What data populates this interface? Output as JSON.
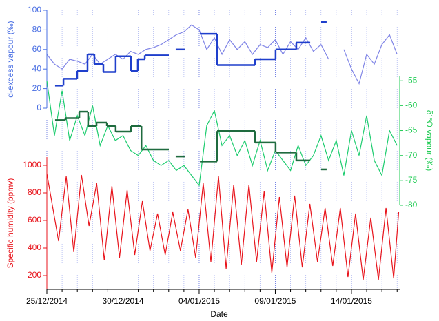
{
  "chart_data": [
    {
      "type": "line",
      "ylabel": "d-excess vapour (‰)",
      "axis_color": "#4a6fe3",
      "axis_side": "left",
      "ylim": [
        0,
        100
      ],
      "yticks": [
        0,
        20,
        40,
        60,
        80,
        100
      ],
      "series": [
        {
          "color": "#7f84e6",
          "x": [
            0,
            0.5,
            1,
            1.5,
            2,
            2.5,
            3,
            3.5,
            4,
            4.5,
            5,
            5.5,
            6,
            6.5,
            7,
            7.5,
            8,
            8.5,
            9,
            9.5,
            10,
            10.5,
            11,
            11.5,
            12,
            12.5,
            13,
            13.5,
            14,
            14.5,
            15,
            15.5,
            16,
            16.5,
            17,
            17.5,
            18,
            18.5,
            19,
            19.5,
            20,
            20.5,
            21,
            21.5,
            22,
            22.5,
            23
          ],
          "values": [
            55,
            45,
            40,
            50,
            48,
            45,
            55,
            45,
            50,
            55,
            50,
            58,
            55,
            60,
            62,
            65,
            70,
            75,
            78,
            85,
            80,
            60,
            72,
            55,
            70,
            60,
            68,
            55,
            65,
            62,
            70,
            55,
            68,
            60,
            72,
            58,
            65,
            50,
            null,
            60,
            40,
            25,
            55,
            45,
            65,
            75,
            55
          ]
        },
        {
          "color": "#1f3fcc",
          "drawstyle": "steps-post",
          "x": [
            0.54,
            1.09,
            1.99,
            2.67,
            3.12,
            3.71,
            4.52,
            5.52,
            5.97,
            6.43,
            8.01,
            8.46,
            9.05,
            10.05,
            11.18,
            13.67,
            15.02,
            16.38,
            17.29,
            18.01,
            18.37
          ],
          "values": [
            23,
            30,
            38,
            55,
            45,
            37,
            53,
            38,
            50,
            54,
            null,
            60,
            null,
            76,
            44,
            50,
            60,
            67,
            null,
            88,
            null
          ]
        }
      ]
    },
    {
      "type": "line",
      "ylabel": "δ¹⁸O vapour (‰)",
      "axis_color": "#22cc55",
      "axis_side": "right",
      "ylim": [
        -80,
        -54
      ],
      "yticks": [
        -55,
        -60,
        -65,
        -70,
        -75,
        -80
      ],
      "series": [
        {
          "color": "#1ccc6e",
          "x": [
            0,
            0.5,
            1,
            1.5,
            2,
            2.5,
            3,
            3.5,
            4,
            4.5,
            5,
            5.5,
            6,
            6.5,
            7,
            7.5,
            8,
            8.5,
            9,
            9.5,
            10,
            10.5,
            11,
            11.5,
            12,
            12.5,
            13,
            13.5,
            14,
            14.5,
            15,
            15.5,
            16,
            16.5,
            17,
            17.5,
            18,
            18.5,
            19,
            19.5,
            20,
            20.5,
            21,
            21.5,
            22,
            22.5,
            23
          ],
          "values": [
            -55,
            -66,
            -57,
            -67,
            -62,
            -66,
            -60,
            -68,
            -64,
            -67,
            -66,
            -69,
            -70,
            -68,
            -71,
            -72,
            -71,
            -73,
            -72,
            -74,
            -76,
            -64,
            -61,
            -68,
            -66,
            -70,
            -67,
            -72,
            -67,
            -73,
            -69,
            -71,
            -73,
            -68,
            -72,
            -70,
            -66,
            -71,
            -67,
            -74,
            -65,
            -70,
            -62,
            -71,
            -74,
            -65,
            -68
          ]
        },
        {
          "color": "#1f6b3f",
          "drawstyle": "steps-post",
          "x": [
            0.54,
            1.22,
            2.13,
            2.71,
            3.26,
            3.94,
            4.52,
            5.52,
            6.21,
            8.01,
            8.46,
            9.05,
            10.05,
            11.18,
            13.67,
            15.02,
            16.38,
            17.29,
            18.01,
            18.37
          ],
          "values": [
            -62.9,
            -62.5,
            -61.2,
            -64.1,
            -63.4,
            -64.1,
            -65.2,
            -64.1,
            -68.8,
            null,
            -70.2,
            null,
            -71.2,
            -65.1,
            -67.4,
            -69.4,
            -71.0,
            null,
            -72.8,
            null
          ]
        }
      ]
    },
    {
      "type": "line",
      "ylabel": "Specific humidity (ppmv)",
      "axis_color": "#e8141c",
      "axis_side": "left",
      "ylim": [
        100,
        1060
      ],
      "yticks": [
        200,
        400,
        600,
        800,
        1000
      ],
      "xlabel": "Date",
      "xlim": [
        0,
        23.17
      ],
      "xticks": [
        {
          "value": 0,
          "label": "25/12/2014"
        },
        {
          "value": 5,
          "label": "30/12/2014"
        },
        {
          "value": 10,
          "label": "04/01/2015"
        },
        {
          "value": 15,
          "label": "09/01/2015"
        },
        {
          "value": 20,
          "label": "14/01/2015"
        }
      ],
      "xminorticks": [
        1,
        2,
        3,
        4,
        6,
        7,
        8,
        9,
        11,
        12,
        13,
        14,
        16,
        17,
        18,
        19,
        21,
        22,
        23
      ],
      "grid": true,
      "series": [
        {
          "color": "#e8141c",
          "x": [
            0,
            0.77,
            1.27,
            1.77,
            2.27,
            2.77,
            3.27,
            3.77,
            4.27,
            4.77,
            5.27,
            5.77,
            6.27,
            6.77,
            7.27,
            7.77,
            8.27,
            8.77,
            9.27,
            9.77,
            10.27,
            10.77,
            11.27,
            11.77,
            12.27,
            12.77,
            13.27,
            13.77,
            14.27,
            14.77,
            15.27,
            15.77,
            16.27,
            16.77,
            17.27,
            17.77,
            18.27,
            18.77,
            19.27,
            19.77,
            20.27,
            20.77,
            21.27,
            21.77,
            22.27,
            22.77,
            23.1
          ],
          "values": [
            940,
            450,
            920,
            370,
            930,
            560,
            870,
            310,
            850,
            330,
            820,
            350,
            740,
            380,
            650,
            350,
            660,
            380,
            680,
            330,
            870,
            300,
            920,
            250,
            860,
            280,
            860,
            300,
            810,
            220,
            770,
            260,
            780,
            260,
            720,
            300,
            690,
            270,
            690,
            190,
            650,
            170,
            620,
            170,
            690,
            180,
            660
          ]
        }
      ]
    }
  ]
}
